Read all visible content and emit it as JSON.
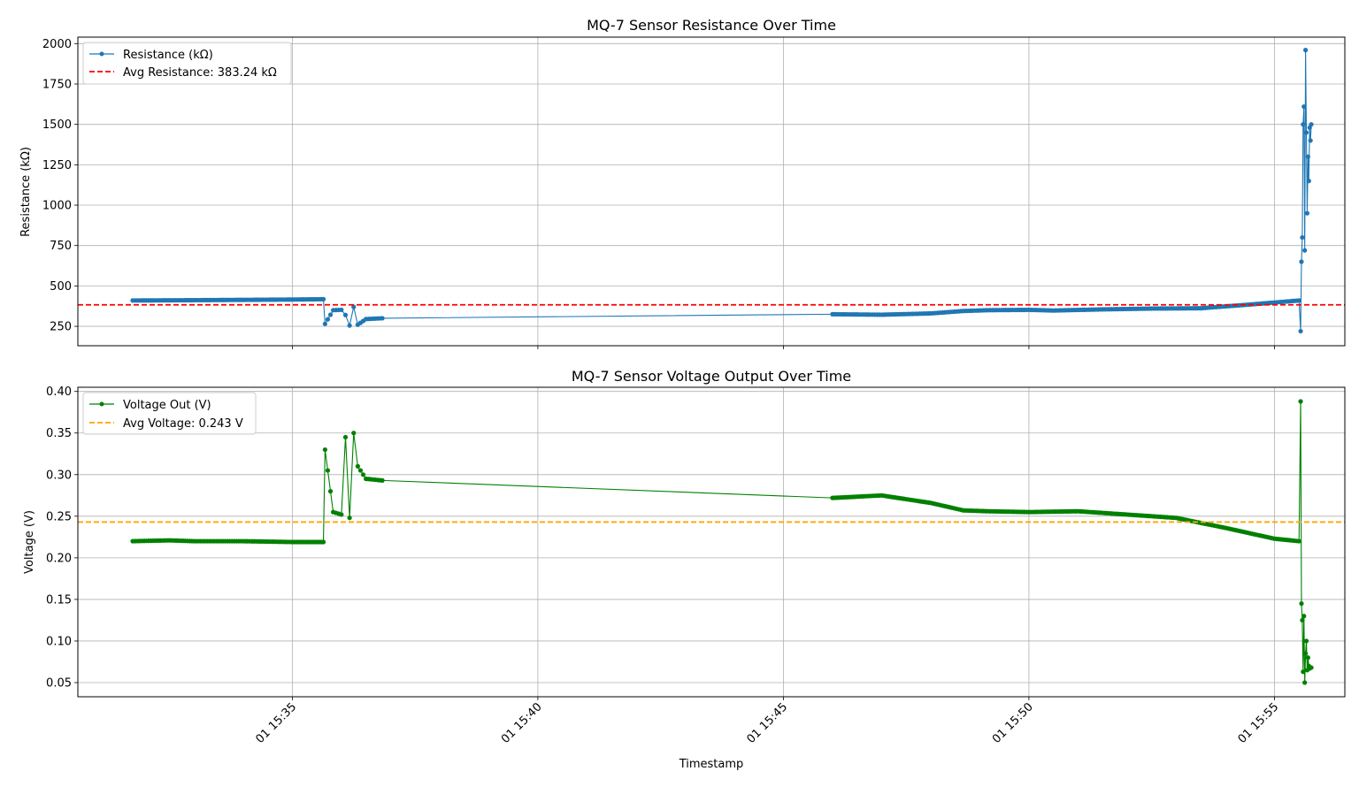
{
  "chart_data": [
    {
      "type": "line",
      "title": "MQ-7 Sensor Resistance Over Time",
      "xlabel": "",
      "ylabel": "Resistance (kΩ)",
      "xlim": [
        "01 15:30:38",
        "01 15:56:26"
      ],
      "ylim": [
        130,
        2040
      ],
      "yticks": [
        250,
        500,
        750,
        1000,
        1250,
        1500,
        1750,
        2000
      ],
      "yticklabels": [
        "250",
        "500",
        "750",
        "1000",
        "1250",
        "1500",
        "1750",
        "2000"
      ],
      "grid": true,
      "legend_position": "top-left",
      "series": [
        {
          "name": "Resistance (kΩ)",
          "color": "#1f77b4",
          "x": [
            "01 15:31:45",
            "01 15:33:00",
            "01 15:34:00",
            "01 15:35:00",
            "01 15:35:38",
            "01 15:35:40",
            "01 15:35:50",
            "01 15:36:00",
            "01 15:36:05",
            "01 15:36:10",
            "01 15:36:15",
            "01 15:36:20",
            "01 15:36:30",
            "01 15:36:50",
            "01 15:46:00",
            "01 15:47:00",
            "01 15:48:00",
            "01 15:48:40",
            "01 15:49:10",
            "01 15:50:00",
            "01 15:50:30",
            "01 15:51:30",
            "01 15:52:30",
            "01 15:53:30",
            "01 15:54:30",
            "01 15:55:30",
            "01 15:55:32",
            "01 15:55:33",
            "01 15:55:34",
            "01 15:55:35",
            "01 15:55:36",
            "01 15:55:37",
            "01 15:55:38",
            "01 15:55:39",
            "01 15:55:40",
            "01 15:55:41",
            "01 15:55:42",
            "01 15:55:43",
            "01 15:55:44",
            "01 15:55:45"
          ],
          "values": [
            410,
            412,
            414,
            416,
            418,
            265,
            350,
            352,
            320,
            255,
            370,
            260,
            295,
            300,
            325,
            322,
            330,
            345,
            350,
            352,
            348,
            355,
            360,
            362,
            385,
            410,
            220,
            650,
            800,
            1500,
            1610,
            720,
            1960,
            1450,
            950,
            1300,
            1150,
            1480,
            1400,
            1500
          ]
        },
        {
          "name": "Avg Resistance: 383.24 kΩ",
          "color": "#ff0000",
          "style": "dashed",
          "hline": 383.24
        }
      ]
    },
    {
      "type": "line",
      "title": "MQ-7 Sensor Voltage Output Over Time",
      "xlabel": "Timestamp",
      "ylabel": "Voltage (V)",
      "xlim": [
        "01 15:30:38",
        "01 15:56:26"
      ],
      "ylim": [
        0.033,
        0.405
      ],
      "yticks": [
        0.05,
        0.1,
        0.15,
        0.2,
        0.25,
        0.3,
        0.35,
        0.4
      ],
      "yticklabels": [
        "0.05",
        "0.10",
        "0.15",
        "0.20",
        "0.25",
        "0.30",
        "0.35",
        "0.40"
      ],
      "xticks": [
        "01 15:35",
        "01 15:40",
        "01 15:45",
        "01 15:50",
        "01 15:55"
      ],
      "grid": true,
      "legend_position": "top-left",
      "series": [
        {
          "name": "Voltage Out (V)",
          "color": "#008000",
          "x": [
            "01 15:31:45",
            "01 15:32:30",
            "01 15:33:00",
            "01 15:34:00",
            "01 15:35:00",
            "01 15:35:38",
            "01 15:35:40",
            "01 15:35:50",
            "01 15:36:00",
            "01 15:36:05",
            "01 15:36:10",
            "01 15:36:15",
            "01 15:36:20",
            "01 15:36:30",
            "01 15:36:50",
            "01 15:46:00",
            "01 15:47:00",
            "01 15:48:00",
            "01 15:48:40",
            "01 15:49:10",
            "01 15:50:00",
            "01 15:51:00",
            "01 15:52:00",
            "01 15:53:00",
            "01 15:54:00",
            "01 15:55:00",
            "01 15:55:30",
            "01 15:55:32",
            "01 15:55:33",
            "01 15:55:34",
            "01 15:55:35",
            "01 15:55:36",
            "01 15:55:37",
            "01 15:55:38",
            "01 15:55:39",
            "01 15:55:40",
            "01 15:55:41",
            "01 15:55:42",
            "01 15:55:43",
            "01 15:55:44",
            "01 15:55:45"
          ],
          "values": [
            0.22,
            0.221,
            0.22,
            0.22,
            0.219,
            0.219,
            0.33,
            0.255,
            0.252,
            0.345,
            0.248,
            0.35,
            0.31,
            0.295,
            0.293,
            0.272,
            0.275,
            0.266,
            0.257,
            0.256,
            0.255,
            0.256,
            0.252,
            0.248,
            0.236,
            0.223,
            0.22,
            0.388,
            0.145,
            0.125,
            0.063,
            0.13,
            0.05,
            0.085,
            0.1,
            0.065,
            0.08,
            0.07,
            0.067,
            0.068,
            0.068
          ]
        },
        {
          "name": "Avg Voltage: 0.243 V",
          "color": "#ffa500",
          "style": "dashed",
          "hline": 0.243
        }
      ]
    }
  ]
}
